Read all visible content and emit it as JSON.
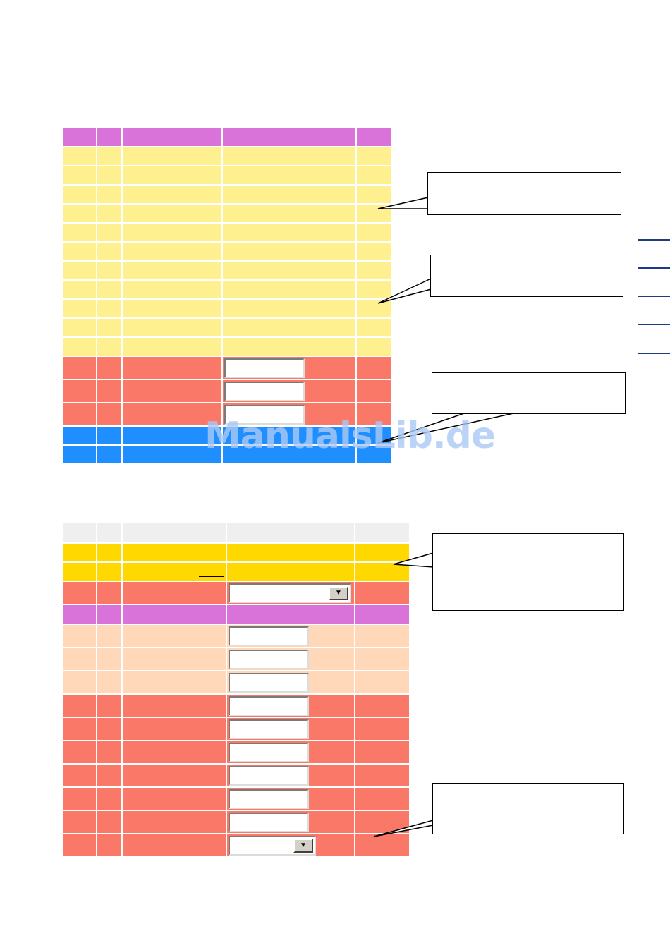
{
  "watermark": {
    "text": "ManualsLib.de"
  },
  "colors": {
    "header_purple": "#d973d9",
    "row_yellow": "#fff08f",
    "row_salmon": "#f97868",
    "row_blue": "#1f8fff",
    "row_gold": "#ffd800",
    "row_peach": "#fed8b8",
    "header_gray": "#efefef"
  },
  "table1": {
    "rows": [
      {
        "type": "header",
        "color": "header_purple",
        "input": "none"
      },
      {
        "type": "row",
        "color": "row_yellow",
        "input": "none"
      },
      {
        "type": "row",
        "color": "row_yellow",
        "input": "none"
      },
      {
        "type": "row",
        "color": "row_yellow",
        "input": "none"
      },
      {
        "type": "row",
        "color": "row_yellow",
        "input": "none"
      },
      {
        "type": "row",
        "color": "row_yellow",
        "input": "none"
      },
      {
        "type": "row",
        "color": "row_yellow",
        "input": "none"
      },
      {
        "type": "row",
        "color": "row_yellow",
        "input": "none"
      },
      {
        "type": "row",
        "color": "row_yellow",
        "input": "none"
      },
      {
        "type": "row",
        "color": "row_yellow",
        "input": "none"
      },
      {
        "type": "row",
        "color": "row_yellow",
        "input": "none"
      },
      {
        "type": "row",
        "color": "row_yellow",
        "input": "none"
      },
      {
        "type": "row",
        "color": "row_salmon",
        "input": "text",
        "value": ""
      },
      {
        "type": "row",
        "color": "row_salmon",
        "input": "text",
        "value": ""
      },
      {
        "type": "row",
        "color": "row_salmon",
        "input": "text",
        "value": ""
      },
      {
        "type": "row",
        "color": "row_blue",
        "input": "none"
      },
      {
        "type": "row",
        "color": "row_blue",
        "input": "none"
      }
    ]
  },
  "table2": {
    "rows": [
      {
        "type": "header",
        "color": "header_gray",
        "input": "none"
      },
      {
        "type": "row",
        "color": "row_gold",
        "input": "none"
      },
      {
        "type": "row",
        "color": "row_gold",
        "input": "none"
      },
      {
        "type": "row",
        "color": "row_salmon",
        "input": "select-wide",
        "value": ""
      },
      {
        "type": "header",
        "color": "header_purple",
        "input": "none"
      },
      {
        "type": "row",
        "color": "row_peach",
        "input": "text",
        "value": ""
      },
      {
        "type": "row",
        "color": "row_peach",
        "input": "text",
        "value": ""
      },
      {
        "type": "row",
        "color": "row_peach",
        "input": "text",
        "value": ""
      },
      {
        "type": "row",
        "color": "row_salmon",
        "input": "text",
        "value": ""
      },
      {
        "type": "row",
        "color": "row_salmon",
        "input": "text",
        "value": ""
      },
      {
        "type": "row",
        "color": "row_salmon",
        "input": "text",
        "value": ""
      },
      {
        "type": "row",
        "color": "row_salmon",
        "input": "text",
        "value": ""
      },
      {
        "type": "row",
        "color": "row_salmon",
        "input": "text",
        "value": ""
      },
      {
        "type": "row",
        "color": "row_salmon",
        "input": "text",
        "value": ""
      },
      {
        "type": "row",
        "color": "row_salmon",
        "input": "select",
        "value": ""
      }
    ]
  },
  "callouts": [
    {
      "text": ""
    },
    {
      "text": ""
    },
    {
      "text": ""
    },
    {
      "text": ""
    },
    {
      "text": ""
    }
  ]
}
